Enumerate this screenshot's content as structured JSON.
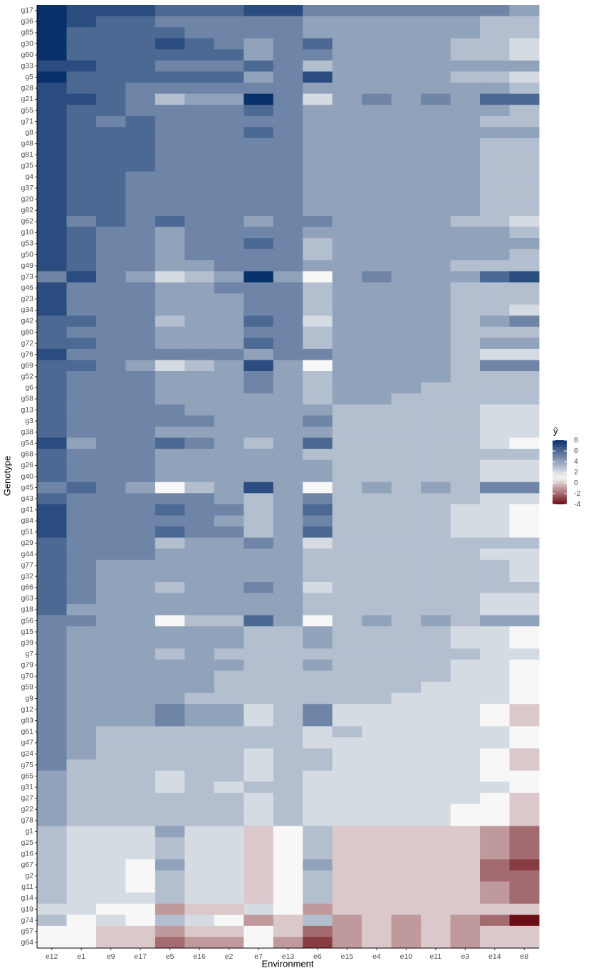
{
  "chart_data": {
    "type": "heatmap",
    "x_label": "Environment",
    "y_label": "Genotype",
    "legend_title": "ŷ",
    "x_categories": [
      "e12",
      "e1",
      "e9",
      "e17",
      "e5",
      "e16",
      "e2",
      "e7",
      "e13",
      "e6",
      "e15",
      "e4",
      "e10",
      "e11",
      "e3",
      "e14",
      "e8"
    ],
    "y_categories": [
      "g17",
      "g36",
      "g85",
      "g30",
      "g60",
      "g33",
      "g5",
      "g28",
      "g21",
      "g55",
      "g71",
      "g8",
      "g48",
      "g81",
      "g35",
      "g4",
      "g37",
      "g20",
      "g82",
      "g62",
      "g10",
      "g53",
      "g50",
      "g49",
      "g73",
      "g46",
      "g23",
      "g34",
      "g42",
      "g80",
      "g72",
      "g76",
      "g69",
      "g52",
      "g6",
      "g58",
      "g13",
      "g3",
      "g38",
      "g54",
      "g68",
      "g26",
      "g40",
      "g45",
      "g43",
      "g41",
      "g84",
      "g51",
      "g29",
      "g44",
      "g77",
      "g32",
      "g66",
      "g63",
      "g18",
      "g56",
      "g15",
      "g39",
      "g7",
      "g79",
      "g70",
      "g59",
      "g9",
      "g12",
      "g83",
      "g61",
      "g47",
      "g24",
      "g75",
      "g65",
      "g31",
      "g27",
      "g22",
      "g78",
      "g1",
      "g25",
      "g16",
      "g67",
      "g2",
      "g11",
      "g14",
      "g19",
      "g74",
      "g57",
      "g64"
    ],
    "values": [
      [
        8,
        7,
        7,
        7,
        6,
        6,
        6,
        7,
        7,
        5,
        5,
        5,
        5,
        5,
        5,
        5,
        4
      ],
      [
        8,
        7,
        6,
        6,
        5,
        5,
        5,
        5,
        5,
        4,
        4,
        4,
        4,
        4,
        4,
        3,
        3
      ],
      [
        8,
        6,
        6,
        6,
        6,
        5,
        5,
        5,
        5,
        4,
        4,
        4,
        4,
        4,
        4,
        3,
        3
      ],
      [
        8,
        6,
        6,
        6,
        7,
        6,
        5,
        4,
        5,
        6,
        4,
        4,
        4,
        4,
        3,
        3,
        2
      ],
      [
        8,
        6,
        6,
        6,
        6,
        6,
        6,
        4,
        5,
        5,
        4,
        4,
        4,
        4,
        3,
        3,
        2
      ],
      [
        7,
        7,
        6,
        6,
        5,
        5,
        5,
        6,
        5,
        3,
        4,
        4,
        4,
        4,
        4,
        4,
        4
      ],
      [
        8,
        6,
        6,
        6,
        6,
        6,
        6,
        4,
        5,
        7,
        4,
        4,
        4,
        4,
        3,
        3,
        2
      ],
      [
        7,
        6,
        6,
        5,
        5,
        5,
        5,
        5,
        5,
        4,
        4,
        4,
        4,
        4,
        4,
        4,
        3
      ],
      [
        7,
        7,
        6,
        5,
        3,
        4,
        4,
        8,
        5,
        2,
        4,
        5,
        4,
        5,
        4,
        6,
        6
      ],
      [
        7,
        6,
        6,
        5,
        5,
        5,
        5,
        6,
        5,
        4,
        4,
        4,
        4,
        4,
        4,
        4,
        3
      ],
      [
        7,
        6,
        5,
        6,
        5,
        5,
        5,
        5,
        5,
        4,
        4,
        4,
        4,
        4,
        4,
        3,
        3
      ],
      [
        7,
        6,
        6,
        6,
        5,
        5,
        5,
        6,
        5,
        4,
        4,
        4,
        4,
        4,
        4,
        4,
        4
      ],
      [
        7,
        6,
        6,
        6,
        5,
        5,
        5,
        5,
        5,
        4,
        4,
        4,
        4,
        4,
        4,
        3,
        3
      ],
      [
        7,
        6,
        6,
        6,
        5,
        5,
        5,
        5,
        5,
        4,
        4,
        4,
        4,
        4,
        4,
        3,
        3
      ],
      [
        7,
        6,
        6,
        6,
        5,
        5,
        5,
        5,
        5,
        4,
        4,
        4,
        4,
        4,
        4,
        3,
        3
      ],
      [
        7,
        6,
        6,
        5,
        5,
        5,
        5,
        5,
        5,
        4,
        4,
        4,
        4,
        4,
        4,
        3,
        3
      ],
      [
        7,
        6,
        6,
        5,
        5,
        5,
        5,
        5,
        5,
        4,
        4,
        4,
        4,
        4,
        4,
        3,
        3
      ],
      [
        7,
        6,
        6,
        5,
        5,
        5,
        5,
        5,
        5,
        4,
        4,
        4,
        4,
        4,
        4,
        3,
        3
      ],
      [
        7,
        6,
        6,
        5,
        5,
        5,
        5,
        5,
        5,
        4,
        4,
        4,
        4,
        4,
        4,
        3,
        3
      ],
      [
        7,
        5,
        6,
        5,
        6,
        5,
        5,
        4,
        5,
        5,
        4,
        4,
        4,
        4,
        3,
        3,
        2
      ],
      [
        7,
        6,
        5,
        5,
        4,
        5,
        5,
        5,
        5,
        4,
        4,
        4,
        4,
        4,
        4,
        4,
        3
      ],
      [
        7,
        6,
        5,
        5,
        4,
        5,
        5,
        6,
        5,
        3,
        4,
        4,
        4,
        4,
        4,
        4,
        4
      ],
      [
        7,
        6,
        5,
        5,
        4,
        5,
        5,
        5,
        5,
        3,
        4,
        4,
        4,
        4,
        4,
        4,
        3
      ],
      [
        7,
        6,
        5,
        5,
        4,
        4,
        5,
        5,
        5,
        4,
        4,
        4,
        4,
        4,
        3,
        3,
        3
      ],
      [
        5,
        7,
        5,
        4,
        2,
        3,
        4,
        8,
        4,
        1,
        4,
        5,
        4,
        4,
        4,
        6,
        7
      ],
      [
        7,
        5,
        5,
        5,
        4,
        4,
        5,
        5,
        5,
        3,
        4,
        4,
        4,
        4,
        3,
        3,
        3
      ],
      [
        7,
        5,
        5,
        5,
        4,
        4,
        4,
        5,
        5,
        3,
        4,
        4,
        4,
        4,
        3,
        3,
        3
      ],
      [
        7,
        5,
        5,
        5,
        4,
        4,
        4,
        5,
        5,
        3,
        4,
        4,
        4,
        4,
        3,
        3,
        2
      ],
      [
        6,
        6,
        5,
        5,
        3,
        4,
        4,
        6,
        5,
        2,
        4,
        4,
        4,
        4,
        3,
        4,
        5
      ],
      [
        6,
        5,
        5,
        5,
        4,
        4,
        4,
        5,
        5,
        3,
        4,
        4,
        4,
        4,
        3,
        3,
        3
      ],
      [
        6,
        6,
        5,
        5,
        4,
        4,
        4,
        6,
        5,
        3,
        4,
        4,
        4,
        4,
        3,
        4,
        4
      ],
      [
        7,
        5,
        5,
        5,
        5,
        5,
        5,
        4,
        5,
        5,
        4,
        4,
        4,
        4,
        3,
        2,
        2
      ],
      [
        6,
        6,
        5,
        4,
        2,
        3,
        4,
        7,
        4,
        1,
        4,
        4,
        4,
        4,
        3,
        5,
        5
      ],
      [
        6,
        5,
        5,
        5,
        4,
        4,
        4,
        5,
        4,
        3,
        4,
        4,
        4,
        4,
        3,
        3,
        3
      ],
      [
        6,
        5,
        5,
        5,
        4,
        4,
        4,
        5,
        4,
        3,
        4,
        4,
        4,
        3,
        3,
        3,
        3
      ],
      [
        6,
        5,
        5,
        5,
        4,
        4,
        4,
        4,
        4,
        3,
        4,
        4,
        3,
        3,
        3,
        3,
        3
      ],
      [
        6,
        5,
        5,
        5,
        5,
        4,
        4,
        4,
        4,
        4,
        3,
        3,
        3,
        3,
        3,
        2,
        2
      ],
      [
        6,
        5,
        5,
        5,
        5,
        5,
        4,
        4,
        4,
        5,
        3,
        3,
        3,
        3,
        3,
        2,
        2
      ],
      [
        6,
        5,
        5,
        5,
        4,
        4,
        4,
        4,
        4,
        4,
        3,
        3,
        3,
        3,
        3,
        2,
        2
      ],
      [
        7,
        4,
        5,
        5,
        6,
        5,
        4,
        3,
        4,
        6,
        3,
        3,
        3,
        3,
        3,
        2,
        1
      ],
      [
        6,
        5,
        5,
        5,
        4,
        4,
        4,
        4,
        4,
        3,
        3,
        3,
        3,
        3,
        3,
        3,
        3
      ],
      [
        6,
        5,
        5,
        5,
        4,
        4,
        4,
        4,
        4,
        4,
        3,
        3,
        3,
        3,
        3,
        2,
        2
      ],
      [
        6,
        5,
        5,
        5,
        4,
        4,
        4,
        4,
        4,
        4,
        3,
        3,
        3,
        3,
        3,
        2,
        2
      ],
      [
        5,
        6,
        5,
        4,
        1,
        3,
        4,
        7,
        4,
        1,
        3,
        4,
        3,
        4,
        3,
        5,
        5
      ],
      [
        6,
        5,
        5,
        5,
        5,
        5,
        4,
        3,
        4,
        5,
        3,
        3,
        3,
        3,
        3,
        2,
        2
      ],
      [
        7,
        5,
        5,
        5,
        6,
        5,
        5,
        3,
        4,
        6,
        3,
        3,
        3,
        3,
        2,
        2,
        1
      ],
      [
        7,
        5,
        5,
        5,
        5,
        5,
        4,
        3,
        4,
        5,
        3,
        3,
        3,
        3,
        2,
        2,
        1
      ],
      [
        7,
        5,
        5,
        5,
        6,
        5,
        5,
        3,
        4,
        6,
        3,
        3,
        3,
        3,
        2,
        2,
        1
      ],
      [
        6,
        5,
        5,
        5,
        3,
        4,
        4,
        5,
        4,
        2,
        3,
        3,
        3,
        3,
        3,
        3,
        3
      ],
      [
        6,
        5,
        5,
        5,
        4,
        4,
        4,
        4,
        4,
        3,
        3,
        3,
        3,
        3,
        3,
        2,
        2
      ],
      [
        6,
        5,
        4,
        4,
        4,
        4,
        4,
        4,
        4,
        3,
        3,
        3,
        3,
        3,
        3,
        3,
        2
      ],
      [
        6,
        5,
        4,
        4,
        4,
        4,
        4,
        4,
        4,
        3,
        3,
        3,
        3,
        3,
        3,
        3,
        2
      ],
      [
        6,
        5,
        4,
        4,
        3,
        4,
        4,
        5,
        4,
        2,
        3,
        3,
        3,
        3,
        3,
        3,
        3
      ],
      [
        6,
        5,
        4,
        4,
        4,
        4,
        4,
        4,
        4,
        3,
        3,
        3,
        3,
        3,
        3,
        2,
        2
      ],
      [
        6,
        4,
        4,
        4,
        4,
        4,
        4,
        4,
        4,
        3,
        3,
        3,
        3,
        3,
        3,
        2,
        2
      ],
      [
        5,
        5,
        4,
        4,
        1,
        3,
        3,
        6,
        4,
        1,
        3,
        4,
        3,
        4,
        3,
        4,
        4
      ],
      [
        5,
        4,
        4,
        4,
        4,
        4,
        4,
        3,
        3,
        4,
        3,
        3,
        3,
        3,
        2,
        2,
        1
      ],
      [
        5,
        4,
        4,
        4,
        4,
        4,
        4,
        3,
        3,
        4,
        3,
        3,
        3,
        3,
        2,
        2,
        1
      ],
      [
        5,
        4,
        4,
        4,
        3,
        4,
        3,
        3,
        3,
        3,
        3,
        3,
        3,
        3,
        3,
        2,
        2
      ],
      [
        5,
        4,
        4,
        4,
        4,
        4,
        4,
        3,
        3,
        4,
        3,
        3,
        3,
        3,
        2,
        2,
        1
      ],
      [
        5,
        4,
        4,
        4,
        4,
        4,
        3,
        3,
        3,
        3,
        3,
        3,
        3,
        3,
        2,
        2,
        1
      ],
      [
        5,
        4,
        4,
        4,
        4,
        4,
        3,
        3,
        3,
        3,
        3,
        3,
        3,
        2,
        2,
        2,
        1
      ],
      [
        5,
        4,
        4,
        4,
        4,
        3,
        3,
        3,
        3,
        3,
        3,
        3,
        2,
        2,
        2,
        2,
        1
      ],
      [
        5,
        4,
        4,
        4,
        5,
        4,
        4,
        2,
        3,
        5,
        2,
        2,
        2,
        2,
        2,
        1,
        0
      ],
      [
        5,
        4,
        4,
        4,
        5,
        4,
        4,
        2,
        3,
        5,
        2,
        2,
        2,
        2,
        2,
        1,
        0
      ],
      [
        5,
        4,
        3,
        3,
        3,
        3,
        3,
        3,
        3,
        2,
        3,
        2,
        2,
        2,
        2,
        2,
        1
      ],
      [
        5,
        4,
        3,
        3,
        3,
        3,
        3,
        3,
        3,
        2,
        2,
        2,
        2,
        2,
        2,
        2,
        1
      ],
      [
        5,
        4,
        3,
        3,
        3,
        3,
        3,
        2,
        3,
        3,
        2,
        2,
        2,
        2,
        2,
        1,
        0
      ],
      [
        5,
        3,
        3,
        3,
        3,
        3,
        3,
        2,
        3,
        3,
        2,
        2,
        2,
        2,
        2,
        1,
        0
      ],
      [
        4,
        3,
        3,
        3,
        2,
        3,
        3,
        2,
        3,
        2,
        2,
        2,
        2,
        2,
        2,
        1,
        1
      ],
      [
        4,
        3,
        3,
        3,
        2,
        3,
        2,
        3,
        3,
        2,
        2,
        2,
        2,
        2,
        2,
        2,
        1
      ],
      [
        4,
        3,
        3,
        3,
        3,
        3,
        3,
        2,
        3,
        2,
        2,
        2,
        2,
        2,
        2,
        1,
        0
      ],
      [
        4,
        3,
        3,
        3,
        3,
        3,
        3,
        2,
        3,
        2,
        2,
        2,
        2,
        2,
        1,
        1,
        0
      ],
      [
        4,
        3,
        3,
        3,
        3,
        3,
        3,
        2,
        3,
        2,
        2,
        2,
        2,
        2,
        1,
        1,
        0
      ],
      [
        3,
        2,
        2,
        2,
        4,
        2,
        2,
        0,
        1,
        3,
        0,
        0,
        0,
        0,
        0,
        -1,
        -2
      ],
      [
        3,
        2,
        2,
        2,
        3,
        2,
        2,
        0,
        1,
        3,
        0,
        0,
        0,
        0,
        0,
        -1,
        -2
      ],
      [
        3,
        2,
        2,
        2,
        3,
        2,
        2,
        0,
        1,
        3,
        0,
        0,
        0,
        0,
        0,
        -1,
        -2
      ],
      [
        3,
        2,
        2,
        1,
        4,
        2,
        2,
        0,
        1,
        4,
        0,
        0,
        0,
        0,
        0,
        -2,
        -3
      ],
      [
        3,
        2,
        2,
        1,
        3,
        2,
        2,
        0,
        1,
        3,
        0,
        0,
        0,
        0,
        0,
        -2,
        -2
      ],
      [
        3,
        2,
        2,
        1,
        3,
        2,
        2,
        0,
        1,
        3,
        0,
        0,
        0,
        0,
        0,
        -1,
        -2
      ],
      [
        3,
        2,
        2,
        2,
        3,
        2,
        2,
        0,
        1,
        3,
        0,
        0,
        0,
        0,
        0,
        -1,
        -2
      ],
      [
        2,
        2,
        1,
        1,
        -1,
        0,
        0,
        2,
        1,
        -1,
        0,
        0,
        0,
        0,
        0,
        0,
        0
      ],
      [
        3,
        1,
        2,
        1,
        3,
        2,
        1,
        -1,
        0,
        3,
        -1,
        0,
        -1,
        0,
        -1,
        -2,
        -4
      ],
      [
        1,
        1,
        0,
        0,
        -1,
        0,
        0,
        1,
        0,
        -2,
        -1,
        0,
        -1,
        0,
        -1,
        0,
        0
      ],
      [
        1,
        1,
        0,
        0,
        -2,
        -1,
        -1,
        1,
        -1,
        -3,
        -1,
        0,
        -1,
        0,
        -1,
        0,
        0
      ]
    ],
    "zlim": [
      -4,
      8
    ],
    "zticks": [
      -4,
      -2,
      0,
      2,
      4,
      6,
      8
    ],
    "midpoint": 1,
    "low_color": "#6b0d14",
    "mid_color": "#f7f7f7",
    "high_color": "#08306b"
  }
}
